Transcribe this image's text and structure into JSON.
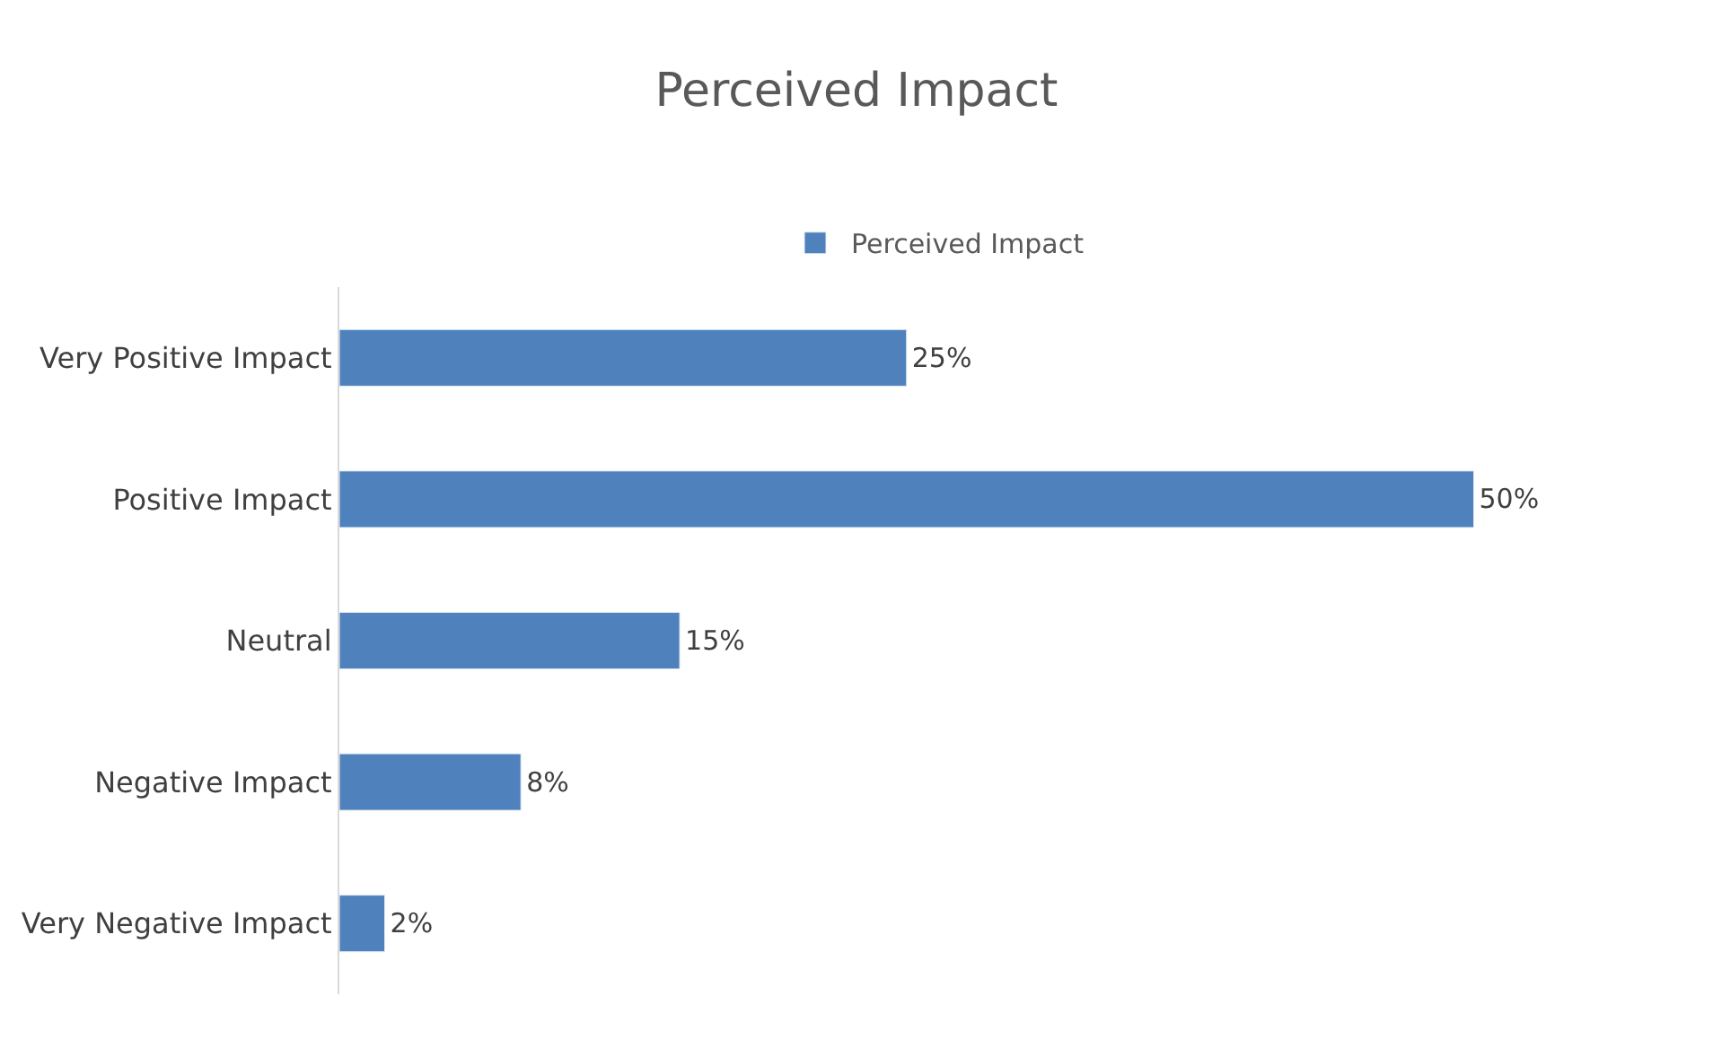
{
  "chart_data": {
    "type": "bar",
    "orientation": "horizontal",
    "title": "Perceived Impact",
    "categories": [
      "Very Positive Impact",
      "Positive Impact",
      "Neutral",
      "Negative Impact",
      "Very Negative Impact"
    ],
    "series": [
      {
        "name": "Perceived Impact",
        "color": "#4f81bd",
        "values": [
          25,
          50,
          15,
          8,
          2
        ],
        "value_labels": [
          "25%",
          "50%",
          "15%",
          "8%",
          "2%"
        ]
      }
    ],
    "legend": "top"
  }
}
